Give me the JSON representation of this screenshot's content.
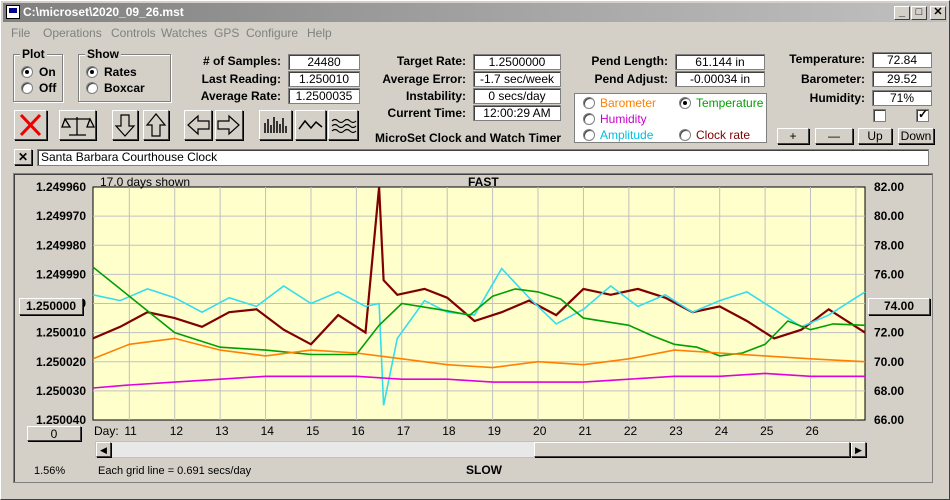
{
  "window": {
    "title": "C:\\microset\\2020_09_26.mst"
  },
  "titlebar_buttons": [
    "_",
    "□",
    "✕"
  ],
  "menu": [
    "File",
    "Operations",
    "Controls",
    "Watches",
    "GPS",
    "Configure",
    "Help"
  ],
  "plot_group": {
    "title": "Plot",
    "options": [
      "On",
      "Off"
    ],
    "selected": "On"
  },
  "show_group": {
    "title": "Show",
    "options": [
      "Rates",
      "Boxcar"
    ],
    "selected": "Rates"
  },
  "stats": {
    "samples_label": "# of Samples:",
    "samples": "24480",
    "last_label": "Last Reading:",
    "last": "1.250010",
    "avg_label": "Average Rate:",
    "avg": "1.2500035",
    "target_label": "Target Rate:",
    "target": "1.2500000",
    "avgerr_label": "Average Error:",
    "avgerr": "-1.7 sec/week",
    "instab_label": "Instability:",
    "instab": "0 secs/day",
    "time_label": "Current Time:",
    "time": "12:00:29 AM",
    "pendlen_label": "Pend Length:",
    "pendlen": "61.144 in",
    "pendadj_label": "Pend Adjust:",
    "pendadj": "-0.00034 in",
    "temp_label": "Temperature:",
    "temp": "72.84",
    "baro_label": "Barometer:",
    "baro": "29.52",
    "hum_label": "Humidity:",
    "hum": "71%"
  },
  "app_caption": "MicroSet Clock and Watch Timer",
  "secondary_group": {
    "options": [
      {
        "label": "Barometer",
        "color": "#ff8000",
        "selected": false
      },
      {
        "label": "Temperature",
        "color": "#00a000",
        "selected": true
      },
      {
        "label": "Humidity",
        "color": "#cc00cc",
        "selected": false
      },
      {
        "label": "Amplitude",
        "color": "#00c0e0",
        "selected": false
      },
      {
        "label": "Clock rate",
        "color": "#800000",
        "selected": false
      }
    ]
  },
  "scale_buttons": {
    "plus": "+",
    "minus": "—",
    "up": "Up",
    "down": "Down"
  },
  "close_x": "✕",
  "clock_name": "Santa Barbara Courthouse Clock",
  "plot": {
    "days_shown": "17.0 days shown",
    "fast": "FAST",
    "slow": "SLOW",
    "left_ticks": [
      "1.249960",
      "1.249970",
      "1.249980",
      "1.249990",
      "1.250000",
      "1.250010",
      "1.250020",
      "1.250030",
      "1.250040"
    ],
    "right_ticks": [
      "82.00",
      "80.00",
      "78.00",
      "76.00",
      "74.00",
      "72.00",
      "70.00",
      "68.00",
      "66.00"
    ],
    "center_left": "1.250000",
    "center_right": "74.00",
    "day_label": "Day:",
    "days": [
      "11",
      "12",
      "13",
      "14",
      "15",
      "16",
      "17",
      "18",
      "19",
      "20",
      "21",
      "22",
      "23",
      "24",
      "25",
      "26"
    ],
    "offset_btn": "0",
    "percent": "1.56%",
    "grid_note": "Each grid line = 0.691 secs/day",
    "bg": "#ffffcc"
  },
  "chart_data": {
    "type": "line",
    "xlabel": "Day:",
    "x_range": [
      10.2,
      27.2
    ],
    "y_left_range": [
      1.25004,
      1.24996
    ],
    "y_right_range": [
      66,
      82
    ],
    "series": [
      {
        "name": "Clock rate",
        "color": "#800000",
        "axis": "left",
        "x": [
          10.2,
          10.8,
          11.4,
          12.0,
          12.6,
          13.2,
          13.8,
          14.4,
          15.0,
          15.6,
          16.2,
          16.5,
          16.6,
          16.9,
          17.5,
          18.0,
          18.6,
          19.2,
          19.8,
          20.4,
          21.0,
          21.6,
          22.2,
          22.8,
          23.4,
          24.0,
          24.6,
          25.2,
          25.8,
          26.4,
          27.2
        ],
        "y": [
          1.250012,
          1.250008,
          1.250003,
          1.250005,
          1.250008,
          1.250003,
          1.250002,
          1.250009,
          1.250014,
          1.250004,
          1.25001,
          1.24996,
          1.249992,
          1.249997,
          1.249995,
          1.249998,
          1.250006,
          1.250003,
          1.249999,
          1.250004,
          1.249995,
          1.249997,
          1.249995,
          1.249998,
          1.250003,
          1.250001,
          1.250006,
          1.250012,
          1.250009,
          1.250002,
          1.25001
        ]
      },
      {
        "name": "Amplitude",
        "color": "#33ddee",
        "axis": "left",
        "x": [
          10.2,
          10.8,
          11.4,
          12.0,
          12.6,
          13.2,
          13.8,
          14.4,
          15.0,
          15.6,
          16.2,
          16.5,
          16.6,
          16.9,
          17.5,
          18.0,
          18.6,
          19.2,
          19.8,
          20.4,
          21.0,
          21.6,
          22.2,
          22.8,
          23.4,
          24.0,
          24.6,
          25.2,
          25.8,
          26.4,
          27.2
        ],
        "y": [
          1.249997,
          1.249999,
          1.249995,
          1.249998,
          1.250003,
          1.249998,
          1.250001,
          1.249994,
          1.25,
          1.249996,
          1.250001,
          1.25,
          1.250035,
          1.250012,
          1.249999,
          1.250003,
          1.250004,
          1.249988,
          1.249998,
          1.250007,
          1.250002,
          1.249994,
          1.250001,
          1.249997,
          1.250003,
          1.249999,
          1.249996,
          1.250002,
          1.250008,
          1.250004,
          1.249996
        ]
      },
      {
        "name": "Temperature",
        "color": "#00a000",
        "axis": "right",
        "x": [
          10.2,
          11.0,
          12.0,
          13.0,
          14.0,
          15.0,
          16.0,
          16.5,
          17.0,
          18.0,
          18.5,
          19.0,
          19.5,
          20.0,
          20.5,
          21.0,
          22.0,
          22.5,
          23.0,
          23.5,
          24.0,
          24.5,
          25.0,
          25.5,
          26.0,
          26.5,
          27.2
        ],
        "y": [
          76.5,
          74.5,
          72,
          71,
          70.8,
          70.5,
          70.5,
          72.5,
          74,
          73.5,
          73.2,
          74.5,
          75,
          74.8,
          74.3,
          73,
          72.5,
          71.8,
          71.2,
          71,
          70.4,
          70.6,
          71.2,
          72.8,
          72.2,
          72.6,
          72.5
        ]
      },
      {
        "name": "Barometer",
        "color": "#ff8000",
        "axis": "left",
        "x": [
          10.2,
          11.0,
          12.0,
          13.0,
          14.0,
          15.0,
          16.0,
          17.0,
          18.0,
          19.0,
          20.0,
          21.0,
          22.0,
          23.0,
          24.0,
          25.0,
          26.0,
          27.2
        ],
        "y": [
          1.250019,
          1.250014,
          1.250012,
          1.250016,
          1.250018,
          1.250016,
          1.250017,
          1.250019,
          1.250021,
          1.250022,
          1.25002,
          1.250021,
          1.250019,
          1.250016,
          1.250017,
          1.250018,
          1.250019,
          1.25002
        ]
      },
      {
        "name": "Humidity",
        "color": "#e000e0",
        "axis": "left",
        "x": [
          10.2,
          11.0,
          12.0,
          13.0,
          14.0,
          15.0,
          16.0,
          17.0,
          18.0,
          19.0,
          20.0,
          21.0,
          22.0,
          23.0,
          24.0,
          25.0,
          26.0,
          27.2
        ],
        "y": [
          1.250029,
          1.250028,
          1.250027,
          1.250026,
          1.250025,
          1.250025,
          1.250025,
          1.250026,
          1.250026,
          1.250027,
          1.250027,
          1.250027,
          1.250026,
          1.250025,
          1.250025,
          1.250024,
          1.250025,
          1.250025
        ]
      }
    ]
  }
}
